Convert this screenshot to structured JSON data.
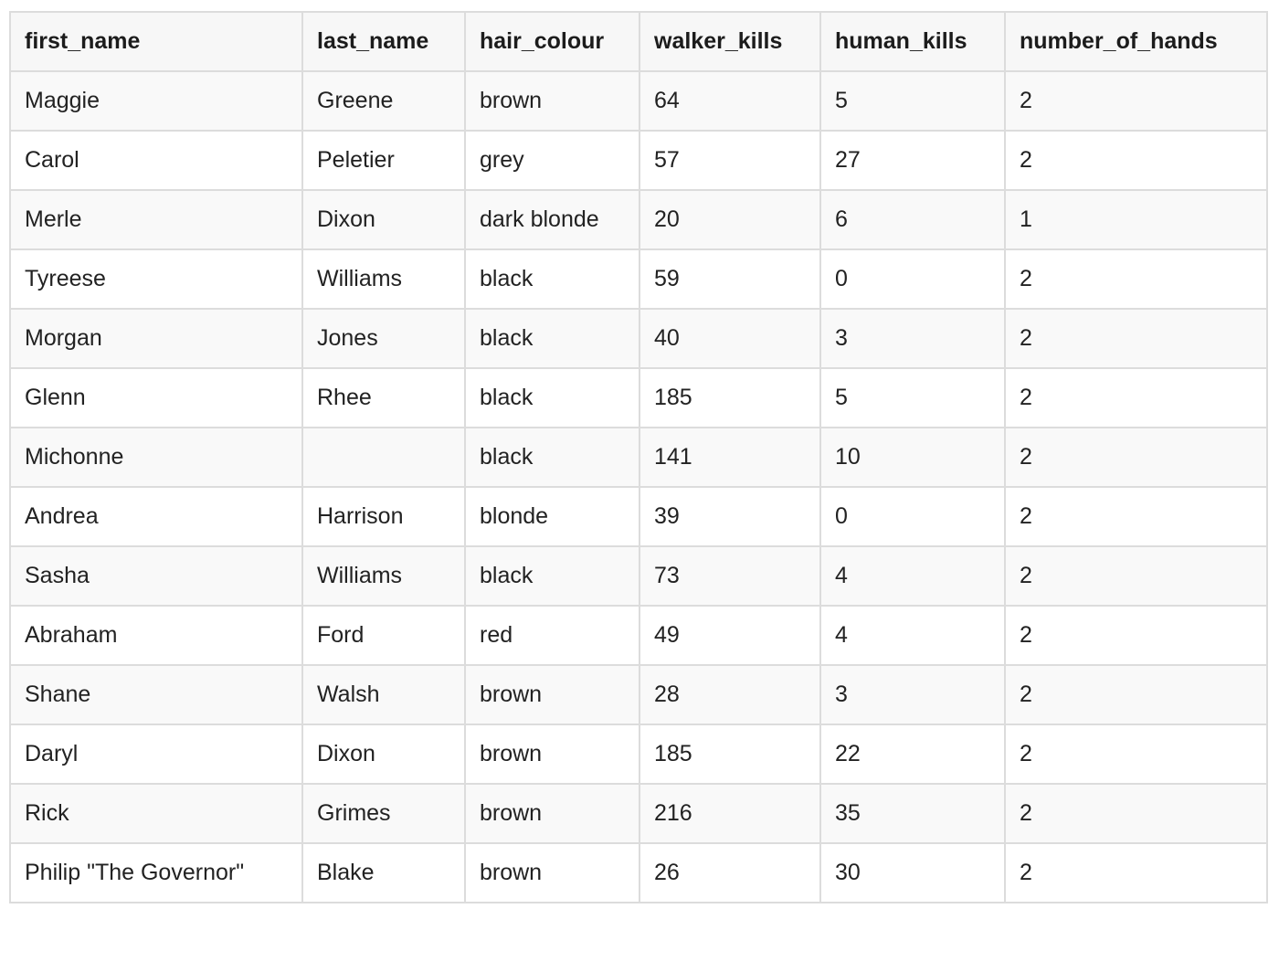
{
  "table": {
    "columns": [
      "first_name",
      "last_name",
      "hair_colour",
      "walker_kills",
      "human_kills",
      "number_of_hands"
    ],
    "rows": [
      [
        "Maggie",
        "Greene",
        "brown",
        "64",
        "5",
        "2"
      ],
      [
        "Carol",
        "Peletier",
        "grey",
        "57",
        "27",
        "2"
      ],
      [
        "Merle",
        "Dixon",
        "dark blonde",
        "20",
        "6",
        "1"
      ],
      [
        "Tyreese",
        "Williams",
        "black",
        "59",
        "0",
        "2"
      ],
      [
        "Morgan",
        "Jones",
        "black",
        "40",
        "3",
        "2"
      ],
      [
        "Glenn",
        "Rhee",
        "black",
        "185",
        "5",
        "2"
      ],
      [
        "Michonne",
        "",
        "black",
        "141",
        "10",
        "2"
      ],
      [
        "Andrea",
        "Harrison",
        "blonde",
        "39",
        "0",
        "2"
      ],
      [
        "Sasha",
        "Williams",
        "black",
        "73",
        "4",
        "2"
      ],
      [
        "Abraham",
        "Ford",
        "red",
        "49",
        "4",
        "2"
      ],
      [
        "Shane",
        "Walsh",
        "brown",
        "28",
        "3",
        "2"
      ],
      [
        "Daryl",
        "Dixon",
        "brown",
        "185",
        "22",
        "2"
      ],
      [
        "Rick",
        "Grimes",
        "brown",
        "216",
        "35",
        "2"
      ],
      [
        "Philip \"The Governor\"",
        "Blake",
        "brown",
        "26",
        "30",
        "2"
      ]
    ]
  }
}
